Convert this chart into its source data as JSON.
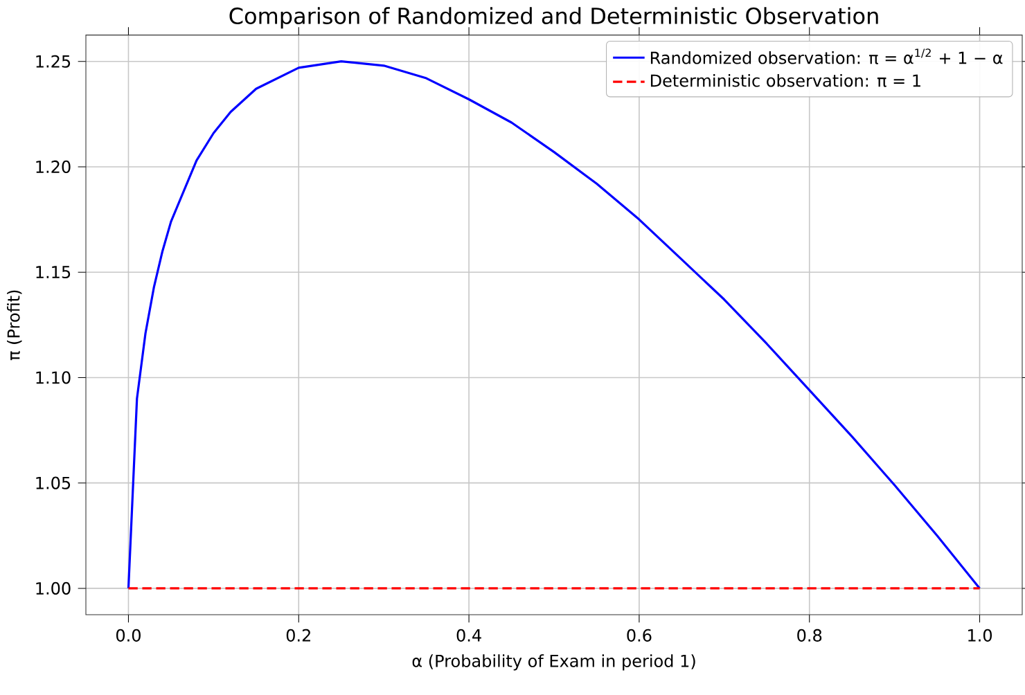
{
  "chart_data": {
    "type": "line",
    "title": "Comparison of Randomized and Deterministic Observation",
    "xlabel": "α (Probability of Exam in period 1)",
    "ylabel": "π (Profit)",
    "series": [
      {
        "name": "Randomized observation: π = α$^{1/2}$ + 1 − α",
        "color": "#0000ff",
        "line_style": "solid",
        "x": [
          0,
          0.01,
          0.02,
          0.03,
          0.04,
          0.05,
          0.08,
          0.1,
          0.12,
          0.15,
          0.2,
          0.25,
          0.3,
          0.35,
          0.4,
          0.45,
          0.5,
          0.55,
          0.6,
          0.65,
          0.7,
          0.75,
          0.8,
          0.85,
          0.9,
          0.95,
          1.0
        ],
        "values": [
          1.0,
          1.09,
          1.121,
          1.143,
          1.16,
          1.174,
          1.203,
          1.216,
          1.226,
          1.237,
          1.247,
          1.25,
          1.248,
          1.242,
          1.232,
          1.221,
          1.207,
          1.192,
          1.175,
          1.156,
          1.137,
          1.116,
          1.094,
          1.072,
          1.049,
          1.025,
          1.0
        ]
      },
      {
        "name": "Deterministic observation: π = 1",
        "color": "#ff0000",
        "line_style": "dashed",
        "x": [
          0,
          1.0
        ],
        "values": [
          1.0,
          1.0
        ]
      }
    ],
    "xlim": [
      -0.05,
      1.05
    ],
    "ylim": [
      0.9875,
      1.2625
    ],
    "xticks": [
      {
        "value": 0,
        "label": "0.0"
      },
      0.2,
      0.4,
      0.6,
      0.8,
      {
        "value": 1,
        "label": "1.0"
      }
    ],
    "yticks": [
      {
        "value": 1,
        "label": "1.00"
      },
      1.05,
      {
        "value": 1.1,
        "label": "1.10"
      },
      1.15,
      {
        "value": 1.2,
        "label": "1.20"
      },
      1.25
    ],
    "grid": true,
    "legend": "top right",
    "marker": "none"
  }
}
